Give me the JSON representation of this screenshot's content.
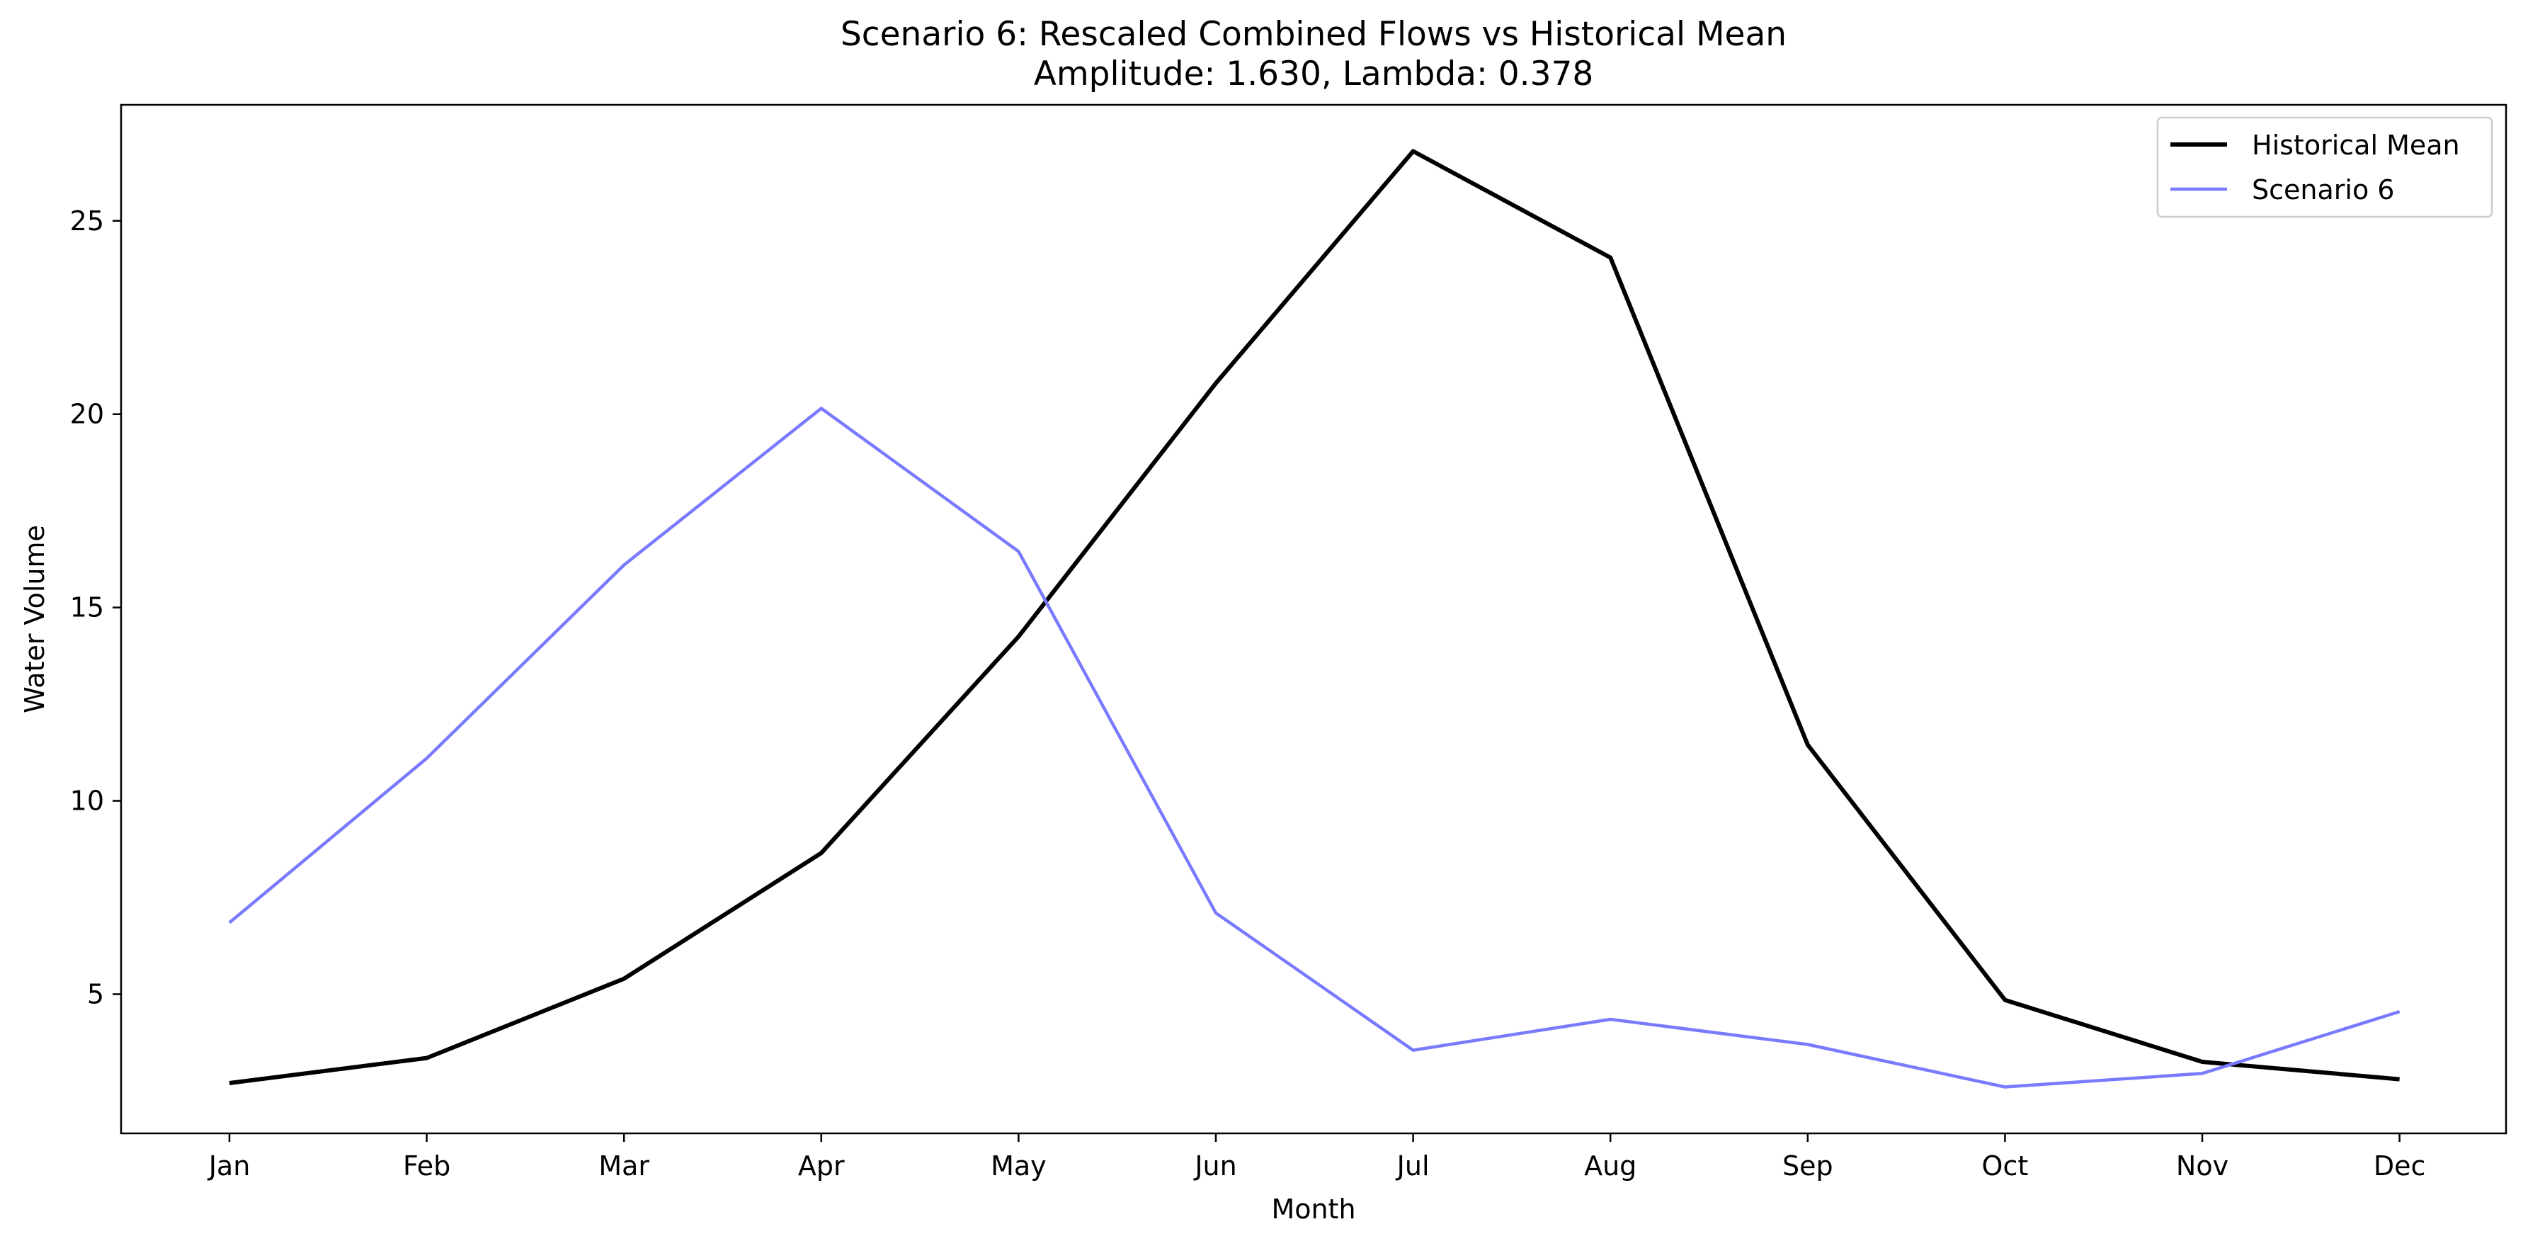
{
  "chart_data": {
    "type": "line",
    "title": "Scenario 6: Rescaled Combined Flows vs Historical Mean",
    "subtitle": "Amplitude: 1.630, Lambda: 0.378",
    "xlabel": "Month",
    "ylabel": "Water Volume",
    "categories": [
      "Jan",
      "Feb",
      "Mar",
      "Apr",
      "May",
      "Jun",
      "Jul",
      "Aug",
      "Sep",
      "Oct",
      "Nov",
      "Dec"
    ],
    "ylim": [
      1.4,
      28.0
    ],
    "yticks": [
      5,
      10,
      15,
      20,
      25
    ],
    "grid": false,
    "legend_position": "top-right",
    "series": [
      {
        "name": "Historical Mean",
        "color": "#000000",
        "values": [
          2.7,
          3.35,
          5.4,
          8.65,
          14.25,
          20.8,
          26.8,
          24.05,
          11.45,
          4.85,
          3.25,
          2.8
        ]
      },
      {
        "name": "Scenario 6",
        "color": "#7a7aff",
        "values": [
          6.85,
          11.1,
          16.1,
          20.15,
          16.45,
          7.1,
          3.55,
          4.35,
          3.7,
          2.6,
          2.95,
          4.55
        ]
      }
    ]
  }
}
